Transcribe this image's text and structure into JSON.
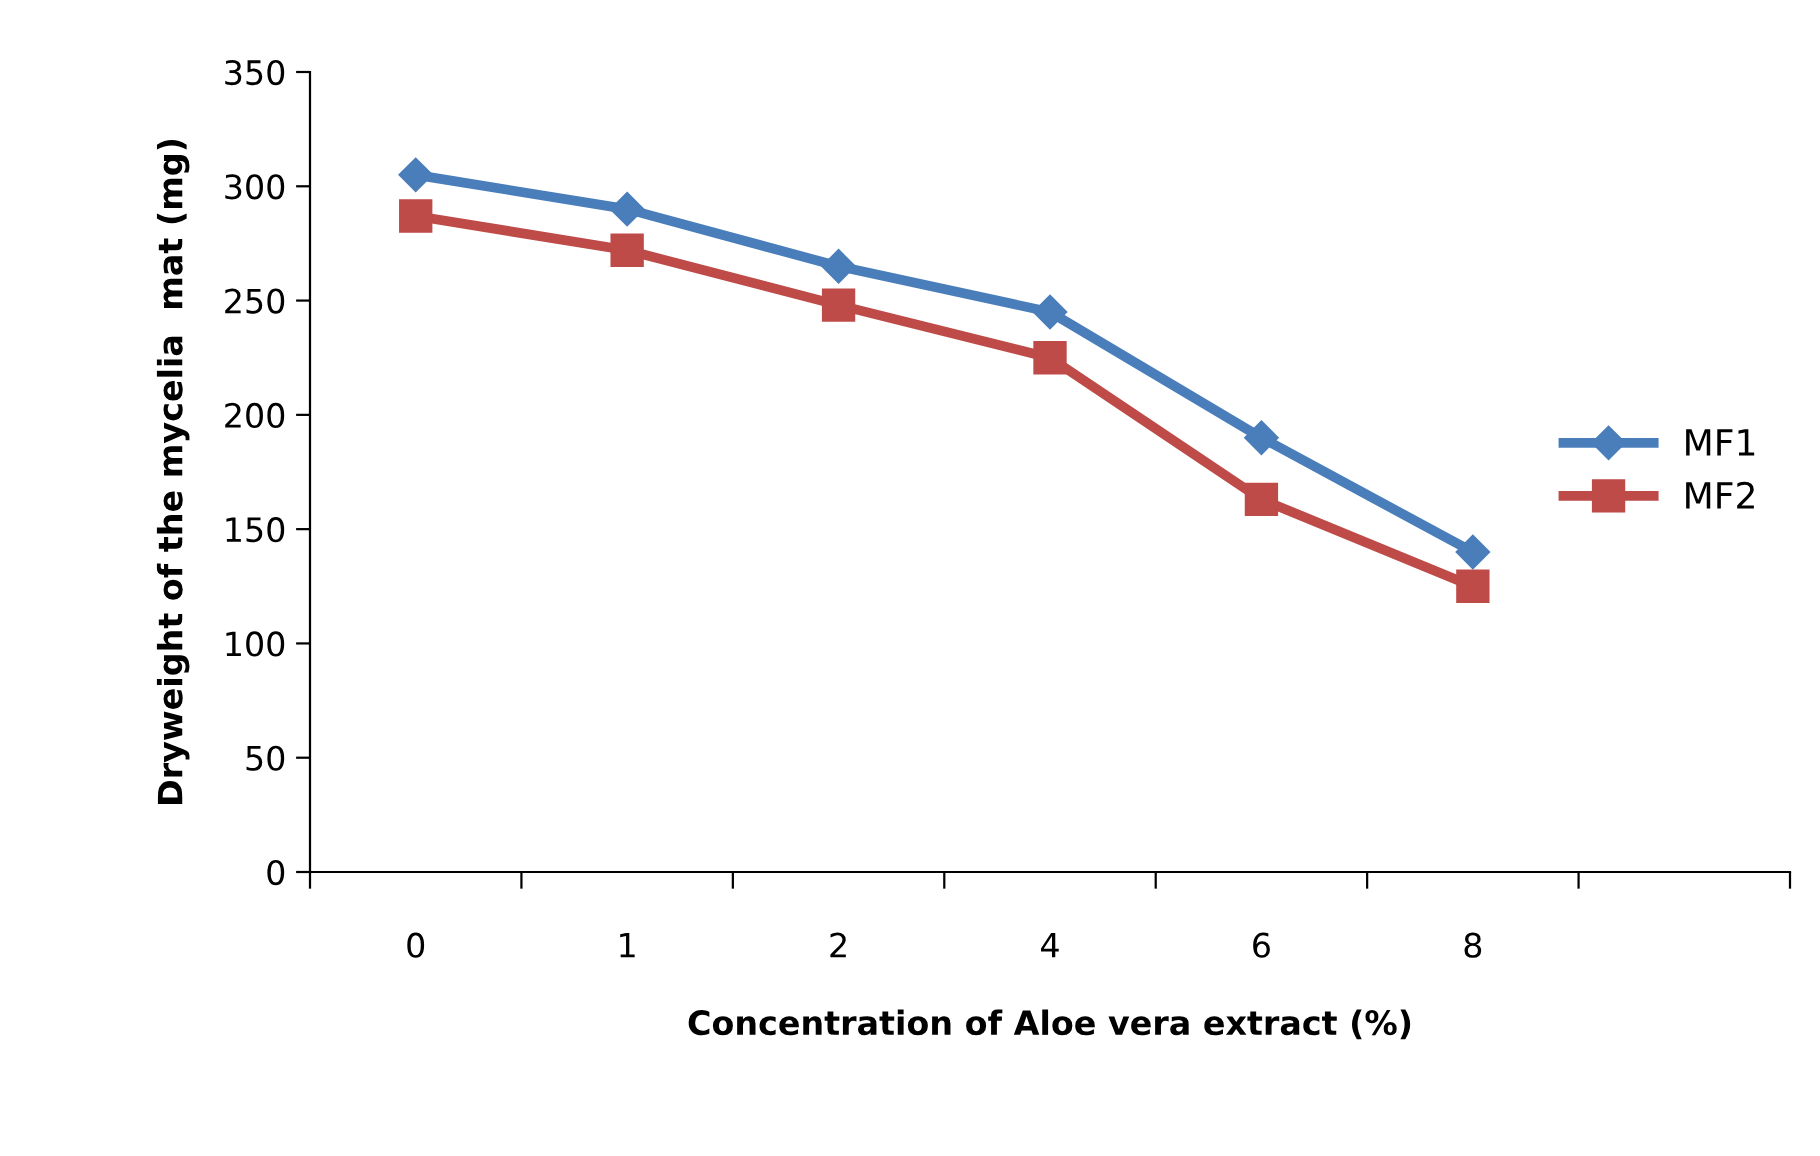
{
  "chart_data": {
    "type": "line",
    "xlabel": "Concentration of Aloe vera extract (%)",
    "ylabel": "Dryweight of the mycelia  mat (mg)",
    "categories": [
      "0",
      "1",
      "2",
      "4",
      "6",
      "8",
      null
    ],
    "series": [
      {
        "name": "MF1",
        "color": "#4a7ebb",
        "marker": "diamond",
        "values": [
          305,
          290,
          265,
          245,
          190,
          140,
          null
        ]
      },
      {
        "name": "MF2",
        "color": "#be4b48",
        "marker": "square",
        "values": [
          287,
          272,
          248,
          225,
          163,
          125,
          null
        ]
      }
    ],
    "ylim": [
      0,
      350
    ],
    "yticks": [
      0,
      50,
      100,
      150,
      200,
      250,
      300,
      350
    ],
    "grid": false,
    "legend": "right"
  }
}
